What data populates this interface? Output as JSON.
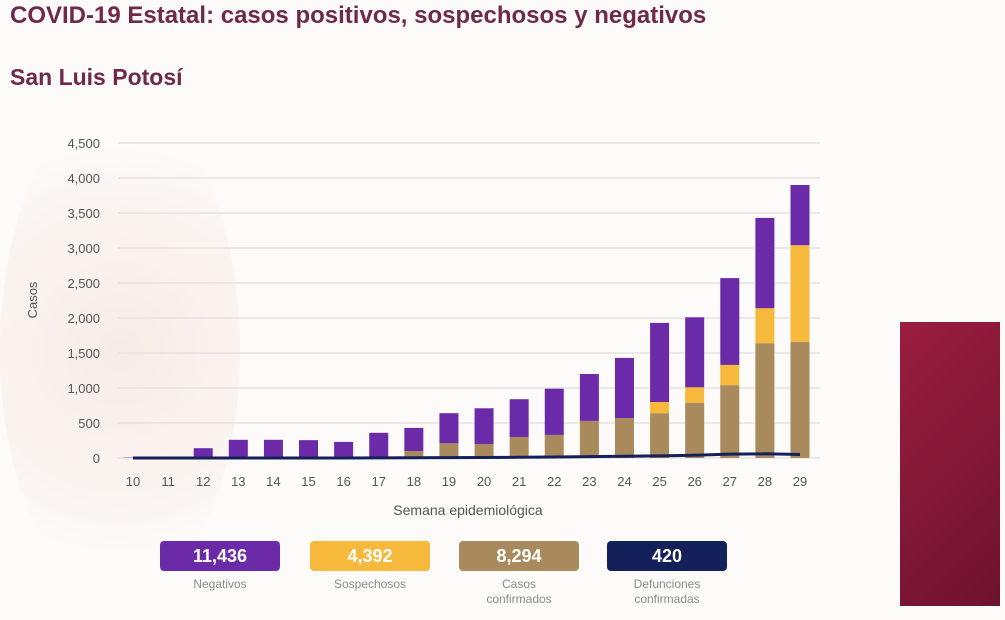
{
  "header": {
    "title": "COVID-19 Estatal: casos positivos, sospechosos y negativos",
    "subtitle": "San Luis Potosí"
  },
  "colors": {
    "title": "#6e2a48",
    "negativos": "#6b2aa8",
    "sospechosos": "#f6b93b",
    "confirmados": "#a88a5c",
    "defunciones": "#14205a",
    "panel": "#8a1838"
  },
  "chart_data": {
    "type": "bar",
    "stacked": true,
    "xlabel": "Semana epidemiológica",
    "ylabel": "Casos",
    "ylim": [
      0,
      4500
    ],
    "yticks": [
      "0",
      "500",
      "1,000",
      "1,500",
      "2,000",
      "2,500",
      "3,000",
      "3,500",
      "4,000",
      "4,500"
    ],
    "grid": true,
    "categories": [
      "10",
      "11",
      "12",
      "13",
      "14",
      "15",
      "16",
      "17",
      "18",
      "19",
      "20",
      "21",
      "22",
      "23",
      "24",
      "25",
      "26",
      "27",
      "28",
      "29"
    ],
    "series": [
      {
        "name": "Casos confirmados",
        "kind": "bar",
        "values": [
          0,
          0,
          0,
          0,
          0,
          0,
          0,
          10,
          100,
          210,
          200,
          300,
          330,
          530,
          570,
          640,
          790,
          1040,
          1640,
          1660
        ]
      },
      {
        "name": "Sospechosos",
        "kind": "bar",
        "values": [
          0,
          0,
          0,
          0,
          0,
          0,
          0,
          0,
          0,
          0,
          0,
          0,
          0,
          0,
          0,
          160,
          220,
          290,
          500,
          1380
        ]
      },
      {
        "name": "Negativos",
        "kind": "bar",
        "values": [
          5,
          10,
          140,
          260,
          260,
          255,
          230,
          350,
          330,
          430,
          510,
          540,
          660,
          670,
          860,
          1130,
          1000,
          1240,
          1290,
          860
        ]
      },
      {
        "name": "Defunciones confirmadas",
        "kind": "line",
        "values": [
          0,
          0,
          0,
          0,
          0,
          0,
          0,
          1,
          3,
          5,
          8,
          10,
          15,
          20,
          25,
          30,
          40,
          55,
          60,
          50
        ]
      }
    ]
  },
  "legend": [
    {
      "value": "11,436",
      "label": "Negativos"
    },
    {
      "value": "4,392",
      "label": "Sospechosos"
    },
    {
      "value": "8,294",
      "label": "Casos confirmados"
    },
    {
      "value": "420",
      "label": "Defunciones confirmadas"
    }
  ]
}
